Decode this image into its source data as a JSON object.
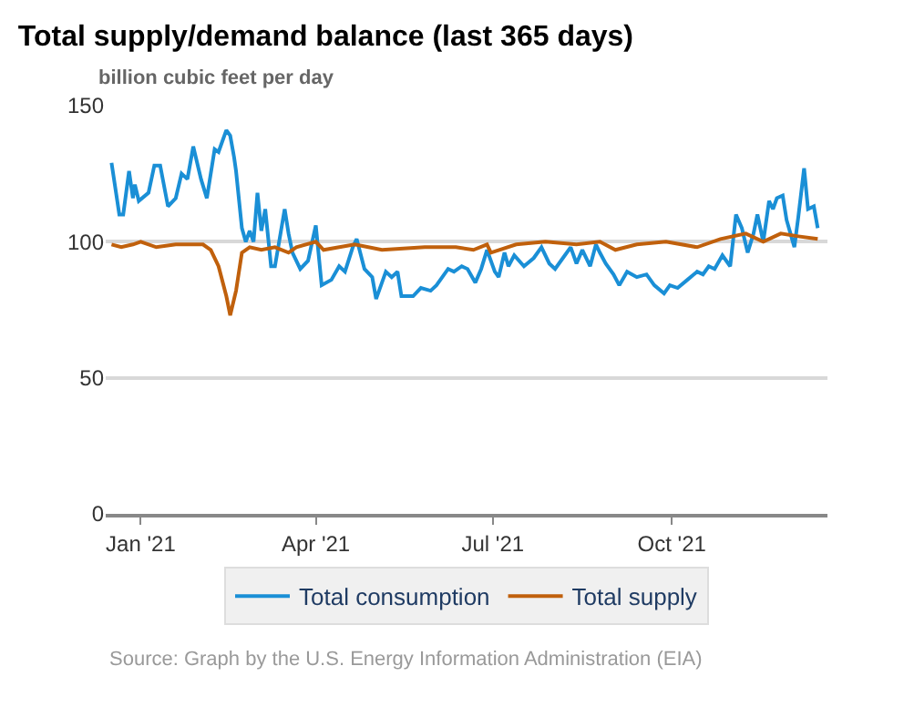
{
  "chart_data": {
    "type": "line",
    "title": "Total supply/demand balance (last 365 days)",
    "ylabel": "billion cubic feet per day",
    "annotations": [
      "Source: Graph by the U.S. Energy Information Administration (EIA)"
    ],
    "xlim": [
      "2020-12-14",
      "2021-12-20"
    ],
    "xticks": [
      {
        "value": "2021-01-01",
        "label": "Jan '21"
      },
      {
        "value": "2021-04-01",
        "label": "Apr '21"
      },
      {
        "value": "2021-07-01",
        "label": "Jul '21"
      },
      {
        "value": "2021-10-01",
        "label": "Oct '21"
      }
    ],
    "ylim": [
      0,
      150
    ],
    "yticks": [
      0,
      50,
      100,
      150
    ],
    "grid": "y",
    "legend": "bottom",
    "line_style": "solid",
    "marker": "none",
    "series": [
      {
        "name": "Total consumption",
        "color": "#1a8fd6",
        "x": [
          "2020-12-17",
          "2020-12-21",
          "2020-12-23",
          "2020-12-26",
          "2020-12-28",
          "2020-12-29",
          "2020-12-31",
          "2021-01-05",
          "2021-01-08",
          "2021-01-11",
          "2021-01-15",
          "2021-01-19",
          "2021-01-22",
          "2021-01-25",
          "2021-01-28",
          "2021-02-01",
          "2021-02-04",
          "2021-02-08",
          "2021-02-10",
          "2021-02-14",
          "2021-02-16",
          "2021-02-18",
          "2021-02-19",
          "2021-02-22",
          "2021-02-24",
          "2021-02-26",
          "2021-02-28",
          "2021-03-02",
          "2021-03-04",
          "2021-03-06",
          "2021-03-09",
          "2021-03-11",
          "2021-03-16",
          "2021-03-18",
          "2021-03-20",
          "2021-03-24",
          "2021-03-28",
          "2021-04-01",
          "2021-04-04",
          "2021-04-09",
          "2021-04-13",
          "2021-04-16",
          "2021-04-20",
          "2021-04-22",
          "2021-04-26",
          "2021-04-30",
          "2021-05-02",
          "2021-05-07",
          "2021-05-10",
          "2021-05-13",
          "2021-05-15",
          "2021-05-21",
          "2021-05-25",
          "2021-05-30",
          "2021-06-02",
          "2021-06-08",
          "2021-06-11",
          "2021-06-15",
          "2021-06-18",
          "2021-06-22",
          "2021-06-25",
          "2021-06-28",
          "2021-07-02",
          "2021-07-04",
          "2021-07-07",
          "2021-07-09",
          "2021-07-12",
          "2021-07-17",
          "2021-07-22",
          "2021-07-26",
          "2021-07-30",
          "2021-08-02",
          "2021-08-06",
          "2021-08-10",
          "2021-08-13",
          "2021-08-16",
          "2021-08-20",
          "2021-08-23",
          "2021-08-25",
          "2021-08-28",
          "2021-09-01",
          "2021-09-04",
          "2021-09-08",
          "2021-09-13",
          "2021-09-18",
          "2021-09-22",
          "2021-09-27",
          "2021-09-30",
          "2021-10-04",
          "2021-10-09",
          "2021-10-14",
          "2021-10-17",
          "2021-10-20",
          "2021-10-23",
          "2021-10-27",
          "2021-10-31",
          "2021-11-03",
          "2021-11-06",
          "2021-11-09",
          "2021-11-12",
          "2021-11-14",
          "2021-11-17",
          "2021-11-20",
          "2021-11-22",
          "2021-11-24",
          "2021-11-27",
          "2021-11-29",
          "2021-12-01",
          "2021-12-03",
          "2021-12-05",
          "2021-12-08",
          "2021-12-10",
          "2021-12-13",
          "2021-12-15"
        ],
        "values": [
          129,
          110,
          110,
          126,
          116,
          121,
          115,
          118,
          128,
          128,
          113,
          116,
          125,
          123,
          135,
          123,
          116,
          134,
          133,
          141,
          139,
          131,
          126,
          105,
          100,
          104,
          100,
          118,
          104,
          112,
          91,
          91,
          112,
          103,
          96,
          90,
          93,
          106,
          84,
          86,
          91,
          89,
          98,
          101,
          90,
          87,
          79,
          89,
          87,
          89,
          80,
          80,
          83,
          82,
          84,
          90,
          89,
          91,
          90,
          85,
          90,
          97,
          89,
          87,
          96,
          91,
          95,
          91,
          94,
          98,
          92,
          90,
          94,
          98,
          92,
          97,
          91,
          99,
          96,
          92,
          88,
          84,
          89,
          87,
          88,
          84,
          81,
          84,
          83,
          86,
          89,
          88,
          91,
          90,
          95,
          91,
          110,
          105,
          96,
          103,
          110,
          100,
          115,
          112,
          116,
          117,
          108,
          103,
          98,
          109,
          127,
          112,
          113,
          105
        ]
      },
      {
        "name": "Total supply",
        "color": "#c0600c",
        "x": [
          "2020-12-17",
          "2020-12-22",
          "2020-12-28",
          "2021-01-01",
          "2021-01-09",
          "2021-01-19",
          "2021-01-28",
          "2021-02-02",
          "2021-02-06",
          "2021-02-10",
          "2021-02-14",
          "2021-02-16",
          "2021-02-19",
          "2021-02-22",
          "2021-02-26",
          "2021-03-04",
          "2021-03-11",
          "2021-03-18",
          "2021-03-22",
          "2021-04-01",
          "2021-04-05",
          "2021-04-21",
          "2021-05-05",
          "2021-05-27",
          "2021-06-12",
          "2021-06-21",
          "2021-06-28",
          "2021-06-30",
          "2021-07-13",
          "2021-07-28",
          "2021-08-13",
          "2021-08-25",
          "2021-09-02",
          "2021-09-13",
          "2021-09-28",
          "2021-10-14",
          "2021-10-26",
          "2021-11-08",
          "2021-11-17",
          "2021-11-26",
          "2021-12-05",
          "2021-12-15"
        ],
        "values": [
          99,
          98,
          99,
          100,
          98,
          99,
          99,
          99,
          97,
          91,
          80,
          73,
          82,
          96,
          98,
          97,
          98,
          96,
          98,
          100,
          97,
          99,
          97,
          98,
          98,
          97,
          99,
          96,
          99,
          100,
          99,
          100,
          97,
          99,
          100,
          98,
          101,
          103,
          100,
          103,
          102,
          101
        ]
      }
    ]
  }
}
